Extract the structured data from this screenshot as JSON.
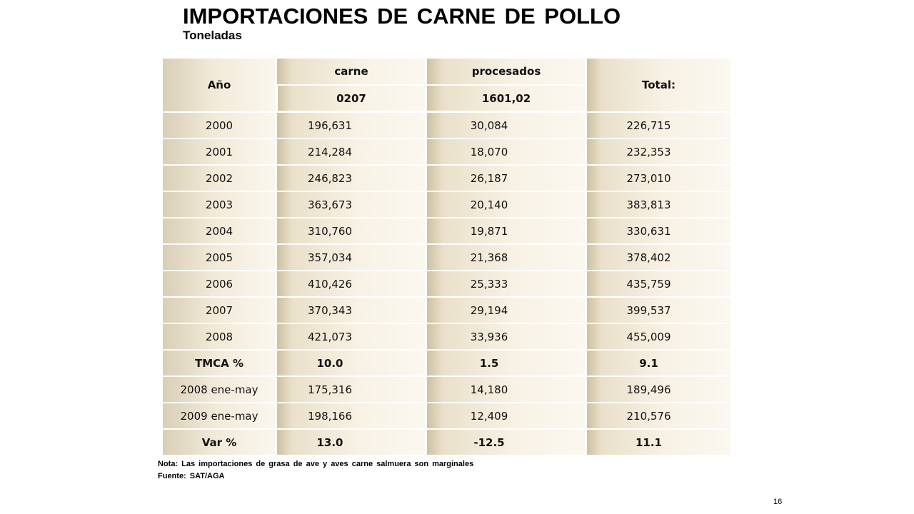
{
  "title": "IMPORTACIONES  DE  CARNE  DE  POLLO",
  "subtitle": "Toneladas",
  "table": {
    "header": {
      "year": "Año",
      "col1": "carne",
      "col2": "procesados",
      "total": "Total:",
      "code1": "0207",
      "code2": "1601,02"
    },
    "rows": [
      {
        "label": "2000",
        "carne": "196,631",
        "procesados": "30,084",
        "total": "226,715",
        "bold": false
      },
      {
        "label": "2001",
        "carne": "214,284",
        "procesados": "18,070",
        "total": "232,353",
        "bold": false
      },
      {
        "label": "2002",
        "carne": "246,823",
        "procesados": "26,187",
        "total": "273,010",
        "bold": false
      },
      {
        "label": "2003",
        "carne": "363,673",
        "procesados": "20,140",
        "total": "383,813",
        "bold": false
      },
      {
        "label": "2004",
        "carne": "310,760",
        "procesados": "19,871",
        "total": "330,631",
        "bold": false
      },
      {
        "label": "2005",
        "carne": "357,034",
        "procesados": "21,368",
        "total": "378,402",
        "bold": false
      },
      {
        "label": "2006",
        "carne": "410,426",
        "procesados": "25,333",
        "total": "435,759",
        "bold": false
      },
      {
        "label": "2007",
        "carne": "370,343",
        "procesados": "29,194",
        "total": "399,537",
        "bold": false
      },
      {
        "label": "2008",
        "carne": "421,073",
        "procesados": "33,936",
        "total": "455,009",
        "bold": false
      },
      {
        "label": "TMCA  %",
        "carne": "10.0",
        "procesados": "1.5",
        "total": "9.1",
        "bold": true
      },
      {
        "label": "2008 ene-may",
        "carne": "175,316",
        "procesados": "14,180",
        "total": "189,496",
        "bold": false
      },
      {
        "label": "2009 ene-may",
        "carne": "198,166",
        "procesados": "12,409",
        "total": "210,576",
        "bold": false
      },
      {
        "label": "Var %",
        "carne": "13.0",
        "procesados": "-12.5",
        "total": "11.1",
        "bold": true
      }
    ]
  },
  "note": "Nota:  Las  importaciones  de  grasa  de  ave  y  aves  carne  salmuera  son   marginales",
  "source": "Fuente:  SAT/AGA",
  "page_number": "16"
}
